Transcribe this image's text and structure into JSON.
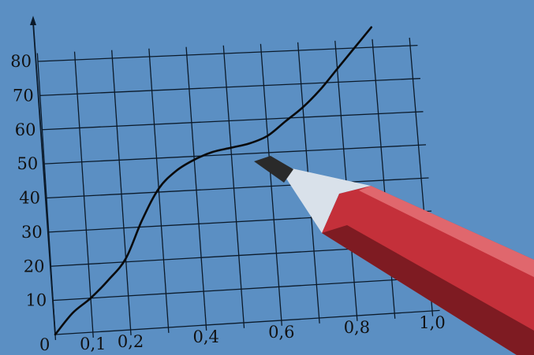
{
  "photo": {
    "background_color": "#5b8fc3",
    "grid_color": "#0b1a2a",
    "curve_color": "#0a0a0a",
    "pencil_body_color": "#c4303a",
    "pencil_wood_color": "#d9e1ea",
    "pencil_lead_color": "#2a2a2a"
  },
  "chart_data": {
    "type": "line",
    "origin_label": "0",
    "x_tick_labels": [
      "0,1",
      "0,2",
      "0,4",
      "0,6",
      "0,8",
      "1,0"
    ],
    "y_tick_labels": [
      "10",
      "20",
      "30",
      "40",
      "50",
      "60",
      "70",
      "80"
    ],
    "xlim": [
      0,
      1.0
    ],
    "ylim": [
      0,
      80
    ],
    "grid": true,
    "series": [
      {
        "x": [
          0,
          0.05,
          0.1,
          0.15,
          0.2,
          0.25,
          0.3,
          0.35,
          0.4,
          0.45,
          0.5,
          0.55,
          0.6,
          0.65,
          0.7,
          0.75,
          0.8,
          0.85,
          0.9
        ],
        "y": [
          0,
          6,
          10,
          15,
          21,
          32,
          41,
          46,
          49,
          51,
          52,
          53,
          55,
          59,
          63,
          68,
          74,
          80,
          86
        ]
      }
    ]
  }
}
